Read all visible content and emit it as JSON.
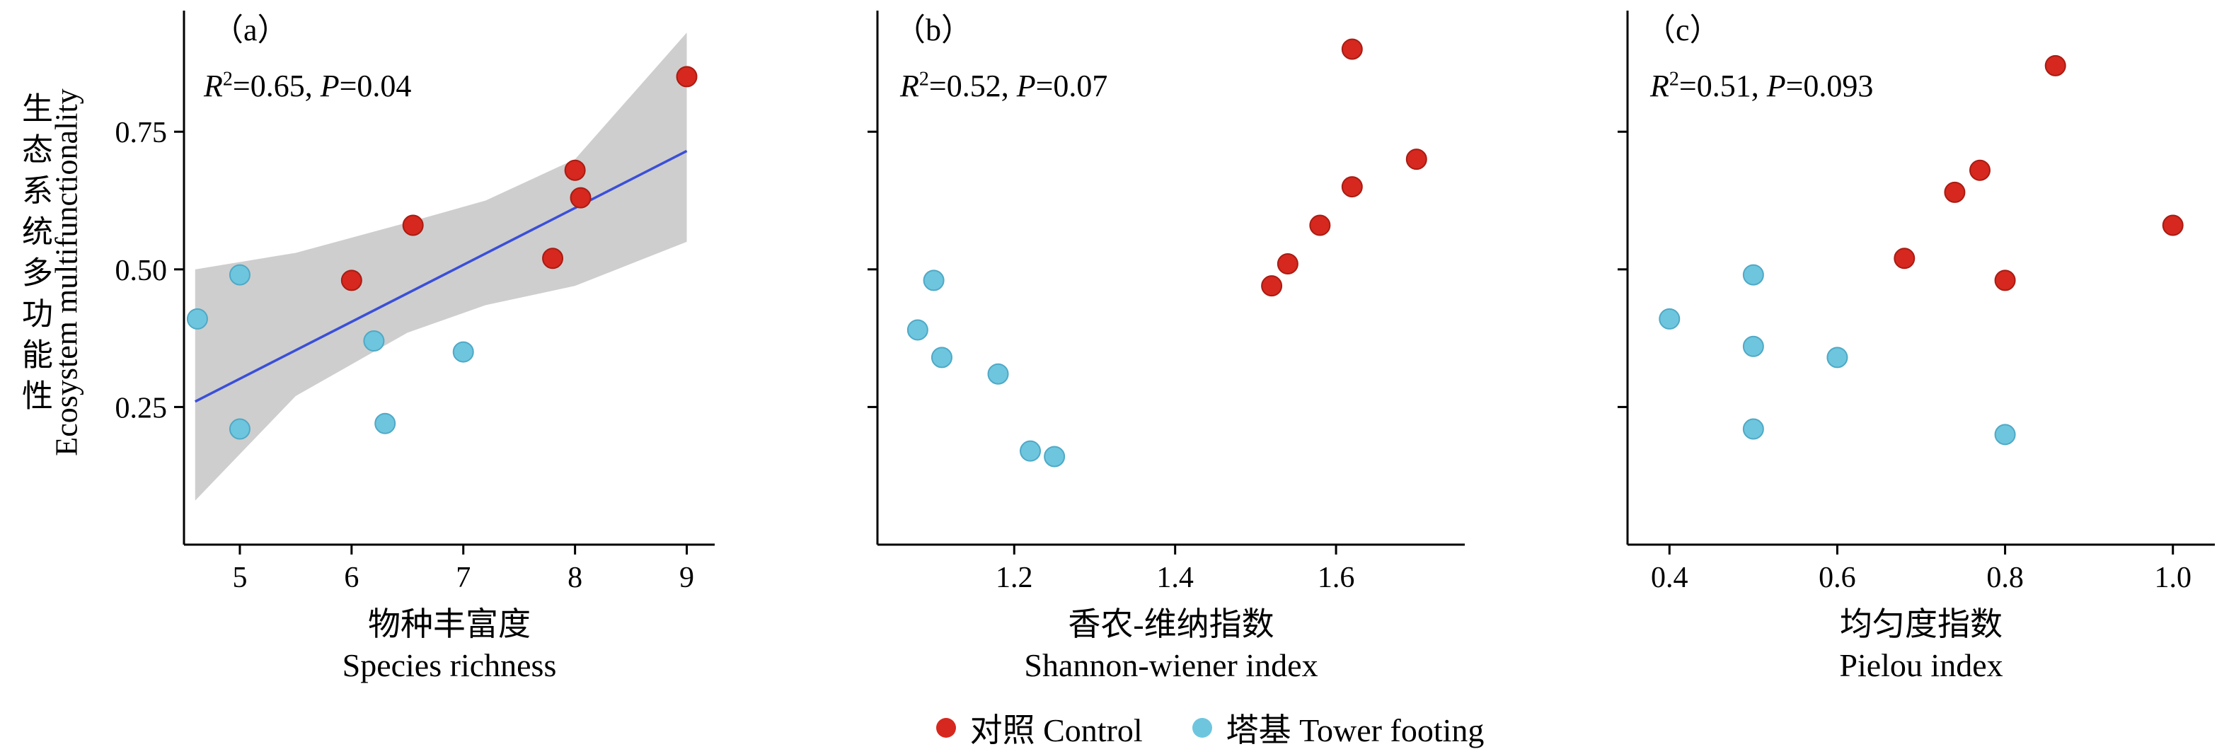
{
  "figure": {
    "y_axis_label_zh": "生态系统多功能性",
    "y_axis_label_en": "Ecosystem multifunctionality",
    "legend": [
      {
        "label": "对照 Control",
        "color": "#d6281e"
      },
      {
        "label": "塔基 Tower footing",
        "color": "#6ec6de"
      }
    ]
  },
  "colors": {
    "control": "#d6281e",
    "control_edge": "#a81c14",
    "tower": "#6ec6de",
    "tower_edge": "#4fa9c6",
    "line": "#3a4fd8",
    "band": "#cbcbcb",
    "axis": "#000000"
  },
  "chart_data": [
    {
      "type": "scatter",
      "panel_label": "（a）",
      "stats": {
        "r_label": "R",
        "r_sup": "2",
        "r_eq": "=0.65, ",
        "p_label": "P",
        "p_eq": "=0.04"
      },
      "xlabel_zh": "物种丰富度",
      "xlabel_en": "Species richness",
      "xlim": [
        4.5,
        9.25
      ],
      "xticks": [
        5,
        6,
        7,
        8,
        9
      ],
      "xtick_labels": [
        "5",
        "6",
        "7",
        "8",
        "9"
      ],
      "ylim": [
        0,
        0.97
      ],
      "yticks": [
        0.25,
        0.5,
        0.75
      ],
      "ytick_labels": [
        "0.25",
        "0.50",
        "0.75"
      ],
      "show_ytick_labels": true,
      "grid": false,
      "series": [
        {
          "name": "对照 Control",
          "color_key": "control",
          "points": [
            [
              6.0,
              0.48
            ],
            [
              6.55,
              0.58
            ],
            [
              7.8,
              0.52
            ],
            [
              8.0,
              0.68
            ],
            [
              8.05,
              0.63
            ],
            [
              9.0,
              0.85
            ]
          ]
        },
        {
          "name": "塔基 Tower footing",
          "color_key": "tower",
          "points": [
            [
              4.62,
              0.41
            ],
            [
              5.0,
              0.49
            ],
            [
              5.0,
              0.21
            ],
            [
              6.2,
              0.37
            ],
            [
              6.3,
              0.22
            ],
            [
              7.0,
              0.35
            ]
          ]
        }
      ],
      "regression": {
        "x": [
          4.6,
          9.0
        ],
        "y": [
          0.26,
          0.715
        ],
        "band_x": [
          4.6,
          5.5,
          6.5,
          7.2,
          8.0,
          9.0
        ],
        "band_upper": [
          0.5,
          0.53,
          0.585,
          0.625,
          0.7,
          0.93
        ],
        "band_lower": [
          0.08,
          0.27,
          0.385,
          0.435,
          0.47,
          0.55
        ]
      }
    },
    {
      "type": "scatter",
      "panel_label": "（b）",
      "stats": {
        "r_label": "R",
        "r_sup": "2",
        "r_eq": "=0.52, ",
        "p_label": "P",
        "p_eq": "=0.07"
      },
      "xlabel_zh": "香农-维纳指数",
      "xlabel_en": "Shannon-wiener index",
      "xlim": [
        1.03,
        1.76
      ],
      "xticks": [
        1.2,
        1.4,
        1.6
      ],
      "xtick_labels": [
        "1.2",
        "1.4",
        "1.6"
      ],
      "ylim": [
        0,
        0.97
      ],
      "yticks": [
        0.25,
        0.5,
        0.75
      ],
      "ytick_labels": [
        "0.25",
        "0.50",
        "0.75"
      ],
      "show_ytick_labels": false,
      "grid": false,
      "series": [
        {
          "name": "对照 Control",
          "color_key": "control",
          "points": [
            [
              1.52,
              0.47
            ],
            [
              1.54,
              0.51
            ],
            [
              1.58,
              0.58
            ],
            [
              1.62,
              0.65
            ],
            [
              1.62,
              0.9
            ],
            [
              1.7,
              0.7
            ]
          ]
        },
        {
          "name": "塔基 Tower footing",
          "color_key": "tower",
          "points": [
            [
              1.08,
              0.39
            ],
            [
              1.1,
              0.48
            ],
            [
              1.11,
              0.34
            ],
            [
              1.18,
              0.31
            ],
            [
              1.22,
              0.17
            ],
            [
              1.25,
              0.16
            ]
          ]
        }
      ],
      "regression": null
    },
    {
      "type": "scatter",
      "panel_label": "（c）",
      "stats": {
        "r_label": "R",
        "r_sup": "2",
        "r_eq": "=0.51, ",
        "p_label": "P",
        "p_eq": "=0.093"
      },
      "xlabel_zh": "均匀度指数",
      "xlabel_en": "Pielou index",
      "xlim": [
        0.35,
        1.05
      ],
      "xticks": [
        0.4,
        0.6,
        0.8,
        1.0
      ],
      "xtick_labels": [
        "0.4",
        "0.6",
        "0.8",
        "1.0"
      ],
      "ylim": [
        0,
        0.97
      ],
      "yticks": [
        0.25,
        0.5,
        0.75
      ],
      "ytick_labels": [
        "0.25",
        "0.50",
        "0.75"
      ],
      "show_ytick_labels": false,
      "grid": false,
      "series": [
        {
          "name": "对照 Control",
          "color_key": "control",
          "points": [
            [
              0.68,
              0.52
            ],
            [
              0.74,
              0.64
            ],
            [
              0.77,
              0.68
            ],
            [
              0.8,
              0.48
            ],
            [
              0.86,
              0.87
            ],
            [
              1.0,
              0.58
            ]
          ]
        },
        {
          "name": "塔基 Tower footing",
          "color_key": "tower",
          "points": [
            [
              0.4,
              0.41
            ],
            [
              0.5,
              0.49
            ],
            [
              0.5,
              0.36
            ],
            [
              0.5,
              0.21
            ],
            [
              0.6,
              0.34
            ],
            [
              0.8,
              0.2
            ]
          ]
        }
      ],
      "regression": null
    }
  ]
}
